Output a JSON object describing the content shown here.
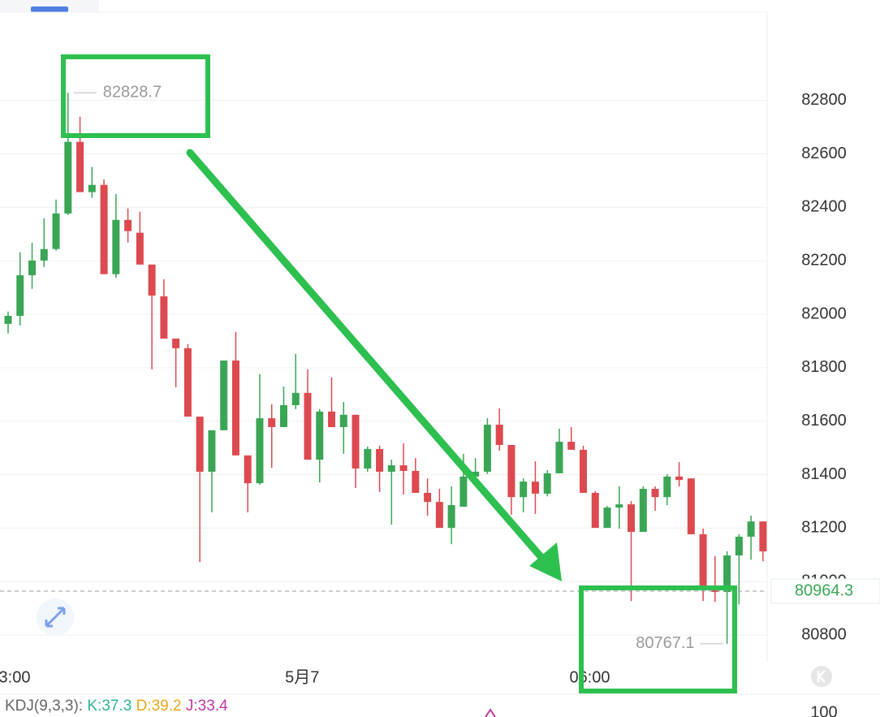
{
  "chart_data": {
    "type": "candlestick",
    "categories": [
      "3:00",
      null,
      null,
      null,
      null,
      null,
      null,
      null,
      null,
      null,
      null,
      null,
      null,
      null,
      null,
      null,
      null,
      null,
      null,
      null,
      null,
      null,
      null,
      null,
      "5月7",
      null,
      null,
      null,
      null,
      null,
      null,
      null,
      null,
      null,
      null,
      null,
      null,
      null,
      null,
      null,
      null,
      null,
      null,
      null,
      null,
      null,
      null,
      null,
      "06:00",
      null,
      null,
      null,
      null,
      null,
      null,
      null,
      null,
      null,
      null,
      null,
      null,
      null,
      null,
      null
    ],
    "open": [
      81964,
      81994,
      82146,
      82201,
      82244,
      82377,
      82645,
      82457,
      82484,
      82150,
      82353,
      82305,
      82186,
      82067,
      81909,
      81873,
      81617,
      81411,
      81566,
      81827,
      81472,
      81368,
      81611,
      81578,
      81660,
      81706,
      81456,
      81636,
      81578,
      81624,
      81423,
      81496,
      81411,
      81435,
      81414,
      81332,
      81298,
      81201,
      81280,
      81393,
      81411,
      81587,
      81511,
      81316,
      81374,
      81329,
      81405,
      81523,
      81493,
      81332,
      81201,
      81277,
      81289,
      81186,
      81347,
      81316,
      81393,
      81386,
      81177,
      80976,
      80961,
      81098,
      81168,
      81225
    ],
    "high": [
      82010,
      82232,
      82268,
      82359,
      82429,
      82828.7,
      82739,
      82551,
      82505,
      82450,
      82396,
      82384,
      82186,
      82131,
      81909,
      81888,
      81617,
      81566,
      81827,
      81934,
      81472,
      81776,
      81663,
      81730,
      81852,
      81794,
      81645,
      81764,
      81672,
      81624,
      81505,
      81508,
      81456,
      81517,
      81462,
      81386,
      81347,
      81356,
      81478,
      81462,
      81611,
      81648,
      81511,
      81386,
      81450,
      81417,
      81572,
      81578,
      81508,
      81338,
      81283,
      81356,
      81301,
      81356,
      81356,
      81402,
      81447,
      81386,
      81198,
      81095,
      81113,
      81177,
      81247,
      81225
    ],
    "low": [
      81928,
      81958,
      82095,
      82177,
      82238,
      82371,
      82457,
      82435,
      82150,
      82137,
      82268,
      82186,
      81794,
      81909,
      81727,
      81617,
      81073,
      81259,
      81566,
      81472,
      81259,
      81362,
      81426,
      81578,
      81645,
      81456,
      81371,
      81578,
      81478,
      81350,
      81411,
      81335,
      81213,
      81326,
      81332,
      81247,
      81201,
      81140,
      81280,
      81377,
      81402,
      81490,
      81250,
      81259,
      81253,
      81319,
      81405,
      81493,
      81332,
      81201,
      81201,
      81198,
      80927,
      81186,
      81265,
      81286,
      81356,
      81177,
      80927,
      80924,
      80767.1,
      80915,
      81082,
      81076
    ],
    "close": [
      81994,
      82146,
      82201,
      82244,
      82377,
      82645,
      82457,
      82484,
      82150,
      82353,
      82311,
      82186,
      82070,
      81909,
      81873,
      81617,
      81411,
      81566,
      81827,
      81472,
      81368,
      81611,
      81578,
      81660,
      81706,
      81456,
      81636,
      81578,
      81624,
      81423,
      81496,
      81411,
      81435,
      81414,
      81332,
      81298,
      81201,
      81286,
      81393,
      81411,
      81587,
      81511,
      81316,
      81374,
      81329,
      81405,
      81523,
      81493,
      81332,
      81201,
      81277,
      81289,
      81186,
      81347,
      81316,
      81393,
      81380,
      81177,
      80976,
      80961,
      81098,
      81168,
      81225,
      81113
    ],
    "up_color": "#3aa655",
    "down_color": "#dc4a50",
    "ylim": [
      80700,
      83130
    ],
    "yticks": [
      80800,
      81000,
      81200,
      81400,
      81600,
      81800,
      82000,
      82200,
      82400,
      82600,
      82800
    ],
    "grid": true,
    "high_marker": 82828.7,
    "low_marker": 80767.1,
    "last_price": 80964.3,
    "indicator": {
      "label": "KDJ(9,3,3):",
      "items": [
        {
          "text": "K:37.3",
          "color": "#2fb39a"
        },
        {
          "text": "D:39.2",
          "color": "#e6a817"
        },
        {
          "text": "J:33.4",
          "color": "#c2369e"
        }
      ],
      "yticks": [
        100
      ]
    }
  }
}
